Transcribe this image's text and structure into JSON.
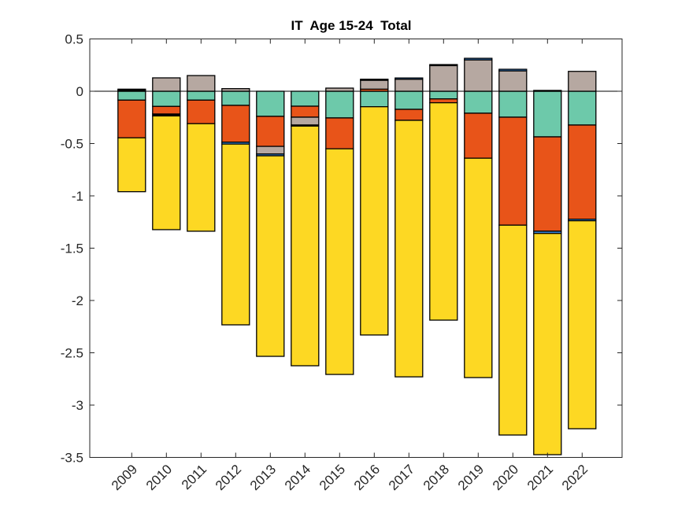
{
  "chart_data": {
    "type": "bar",
    "stacked": true,
    "title": "IT  Age 15-24  Total",
    "xlabel": "",
    "ylabel": "",
    "ylim": [
      -3.5,
      0.5
    ],
    "yticks": [
      0.5,
      0,
      -0.5,
      -1,
      -1.5,
      -2,
      -2.5,
      -3,
      -3.5
    ],
    "ytick_labels": [
      "0.5",
      "0",
      "-0.5",
      "-1",
      "-1.5",
      "-2",
      "-2.5",
      "-3",
      "-3.5"
    ],
    "categories": [
      "2009",
      "2010",
      "2011",
      "2012",
      "2013",
      "2014",
      "2015",
      "2016",
      "2017",
      "2018",
      "2019",
      "2020",
      "2021",
      "2022"
    ],
    "grid": false,
    "legend": "none",
    "zero_line": true,
    "series": [
      {
        "name": "teal component",
        "color": "#6DC9AA",
        "values": [
          -0.085,
          -0.145,
          -0.085,
          -0.135,
          -0.24,
          -0.143,
          -0.255,
          -0.148,
          -0.173,
          -0.073,
          -0.21,
          -0.248,
          -0.436,
          -0.323
        ]
      },
      {
        "name": "orange component",
        "color": "#E85419",
        "values": [
          -0.36,
          -0.073,
          -0.225,
          -0.352,
          -0.287,
          -0.105,
          -0.295,
          0.02,
          -0.105,
          -0.037,
          -0.43,
          -1.032,
          -0.902,
          -0.9
        ]
      },
      {
        "name": "grey component",
        "color": "#B6A8A1",
        "values": [
          0.01,
          0.128,
          0.15,
          0.025,
          -0.073,
          -0.075,
          0.03,
          0.085,
          0.115,
          0.245,
          0.3,
          0.195,
          0,
          0.19
        ]
      },
      {
        "name": "blue component",
        "color": "#3C8FE5",
        "values": [
          0,
          0,
          0,
          -0.018,
          -0.017,
          0,
          0,
          0,
          0.012,
          0,
          0.015,
          0.015,
          -0.021,
          -0.015
        ]
      },
      {
        "name": "black component",
        "color": "#000000",
        "values": [
          0.01,
          -0.018,
          0,
          0,
          0,
          -0.01,
          0,
          0.01,
          0,
          0.01,
          0,
          0,
          0.008,
          0
        ]
      },
      {
        "name": "yellow component",
        "color": "#FDD823",
        "values": [
          -0.515,
          -1.087,
          -1.028,
          -1.728,
          -1.917,
          -2.291,
          -2.157,
          -2.182,
          -2.452,
          -2.078,
          -2.097,
          -2.006,
          -2.115,
          -1.988
        ]
      }
    ]
  }
}
